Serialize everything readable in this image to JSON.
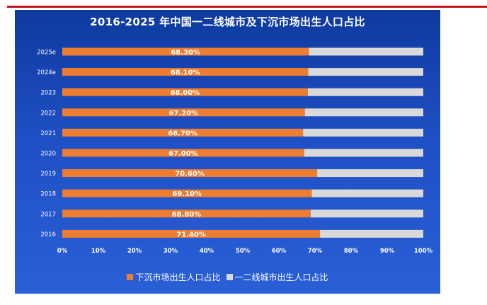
{
  "chart_data": {
    "type": "bar",
    "orientation": "horizontal",
    "stacked": true,
    "title": "2016-2025 年中国一二线城市及下沉市场出生人口占比",
    "categories": [
      "2016",
      "2017",
      "2018",
      "2019",
      "2020",
      "2021",
      "2022",
      "2023",
      "2024e",
      "2025e"
    ],
    "series": [
      {
        "name": "下沉市场出生人口占比",
        "color": "#ed7d31",
        "values": [
          71.4,
          68.8,
          69.1,
          70.6,
          67.0,
          66.7,
          67.2,
          68.0,
          68.1,
          68.3
        ],
        "labels": [
          "71.40%",
          "68.80%",
          "69.10%",
          "70.60%",
          "67.00%",
          "66.70%",
          "67.20%",
          "68.00%",
          "68.10%",
          "68.30%"
        ]
      },
      {
        "name": "一二线城市出生人口占比",
        "color": "#d9d9d9",
        "values": [
          28.6,
          31.2,
          30.9,
          29.4,
          33.0,
          33.3,
          32.8,
          32.0,
          31.9,
          31.7
        ]
      }
    ],
    "x_ticks": [
      "0%",
      "10%",
      "20%",
      "30%",
      "40%",
      "50%",
      "60%",
      "70%",
      "80%",
      "90%",
      "100%"
    ],
    "xlim": [
      0,
      100
    ],
    "grid": false,
    "legend_position": "bottom"
  }
}
